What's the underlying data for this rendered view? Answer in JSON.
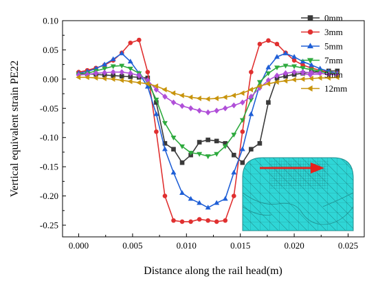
{
  "chart_data": {
    "type": "line",
    "xlabel": "Distance along the rail head(m)",
    "ylabel": "Vertical equivalent strain PE22",
    "xlim": [
      -0.0015,
      0.0265
    ],
    "ylim": [
      -0.27,
      0.1
    ],
    "xticks": [
      0.0,
      0.005,
      0.01,
      0.015,
      0.02,
      0.025
    ],
    "xtick_labels": [
      "0.000",
      "0.005",
      "0.010",
      "0.015",
      "0.020",
      "0.025"
    ],
    "yticks": [
      0.1,
      0.05,
      0.0,
      -0.05,
      -0.1,
      -0.15,
      -0.2,
      -0.25
    ],
    "ytick_labels": [
      "0.10",
      "0.05",
      "0.00",
      "-0.05",
      "-0.10",
      "-0.15",
      "-0.20",
      "-0.25"
    ],
    "grid": false,
    "legend_position": "top-right",
    "x": [
      0.0,
      0.0008,
      0.0016,
      0.0024,
      0.0032,
      0.004,
      0.0048,
      0.0056,
      0.0064,
      0.0072,
      0.008,
      0.0088,
      0.0096,
      0.0104,
      0.0112,
      0.012,
      0.0128,
      0.0136,
      0.0144,
      0.0152,
      0.016,
      0.0168,
      0.0176,
      0.0184,
      0.0192,
      0.02,
      0.0208,
      0.0216,
      0.0224,
      0.0232,
      0.024
    ],
    "series": [
      {
        "name": "0mm",
        "color": "#3a3a3a",
        "marker": "square",
        "values": [
          0.01,
          0.009,
          0.008,
          0.007,
          0.006,
          0.005,
          0.004,
          0.003,
          0.002,
          -0.04,
          -0.11,
          -0.12,
          -0.143,
          -0.13,
          -0.108,
          -0.104,
          -0.106,
          -0.11,
          -0.13,
          -0.143,
          -0.12,
          -0.11,
          -0.04,
          0.002,
          0.005,
          0.008,
          0.01,
          0.012,
          0.013,
          0.014,
          0.014
        ]
      },
      {
        "name": "3mm",
        "color": "#e03030",
        "marker": "circle",
        "values": [
          0.012,
          0.015,
          0.019,
          0.024,
          0.032,
          0.045,
          0.062,
          0.067,
          0.012,
          -0.09,
          -0.2,
          -0.242,
          -0.244,
          -0.244,
          -0.24,
          -0.242,
          -0.244,
          -0.242,
          -0.2,
          -0.09,
          0.012,
          0.06,
          0.066,
          0.06,
          0.045,
          0.032,
          0.024,
          0.019,
          0.015,
          0.012,
          0.01
        ]
      },
      {
        "name": "5mm",
        "color": "#1f5fd6",
        "marker": "triangle-up",
        "values": [
          0.01,
          0.013,
          0.018,
          0.025,
          0.034,
          0.044,
          0.03,
          0.01,
          -0.013,
          -0.06,
          -0.12,
          -0.16,
          -0.195,
          -0.205,
          -0.212,
          -0.22,
          -0.212,
          -0.205,
          -0.16,
          -0.12,
          -0.06,
          -0.01,
          0.02,
          0.038,
          0.044,
          0.038,
          0.03,
          0.024,
          0.018,
          0.013,
          0.01
        ]
      },
      {
        "name": "7mm",
        "color": "#2eaa3e",
        "marker": "triangle-down",
        "values": [
          0.008,
          0.01,
          0.014,
          0.018,
          0.022,
          0.023,
          0.018,
          0.01,
          -0.005,
          -0.035,
          -0.075,
          -0.1,
          -0.115,
          -0.126,
          -0.128,
          -0.132,
          -0.128,
          -0.115,
          -0.095,
          -0.07,
          -0.035,
          -0.005,
          0.01,
          0.02,
          0.023,
          0.022,
          0.019,
          0.016,
          0.013,
          0.01,
          0.008
        ]
      },
      {
        "name": "9mm",
        "color": "#b04fd8",
        "marker": "diamond",
        "values": [
          0.007,
          0.008,
          0.01,
          0.011,
          0.012,
          0.012,
          0.01,
          0.006,
          -0.002,
          -0.018,
          -0.03,
          -0.04,
          -0.046,
          -0.05,
          -0.054,
          -0.057,
          -0.054,
          -0.05,
          -0.045,
          -0.04,
          -0.03,
          -0.015,
          -0.002,
          0.006,
          0.01,
          0.012,
          0.012,
          0.011,
          0.01,
          0.008,
          0.007
        ]
      },
      {
        "name": "12mm",
        "color": "#c8940c",
        "marker": "triangle-left",
        "values": [
          0.003,
          0.003,
          0.002,
          0.001,
          0.0,
          -0.002,
          -0.004,
          -0.006,
          -0.008,
          -0.012,
          -0.018,
          -0.024,
          -0.028,
          -0.031,
          -0.033,
          -0.034,
          -0.033,
          -0.031,
          -0.028,
          -0.024,
          -0.018,
          -0.012,
          -0.008,
          -0.005,
          -0.003,
          -0.001,
          0.0,
          0.001,
          0.002,
          0.002,
          0.003
        ]
      }
    ],
    "inset": {
      "mesh_color": "#2fd6d6",
      "arrow_color": "#e8201c"
    }
  }
}
